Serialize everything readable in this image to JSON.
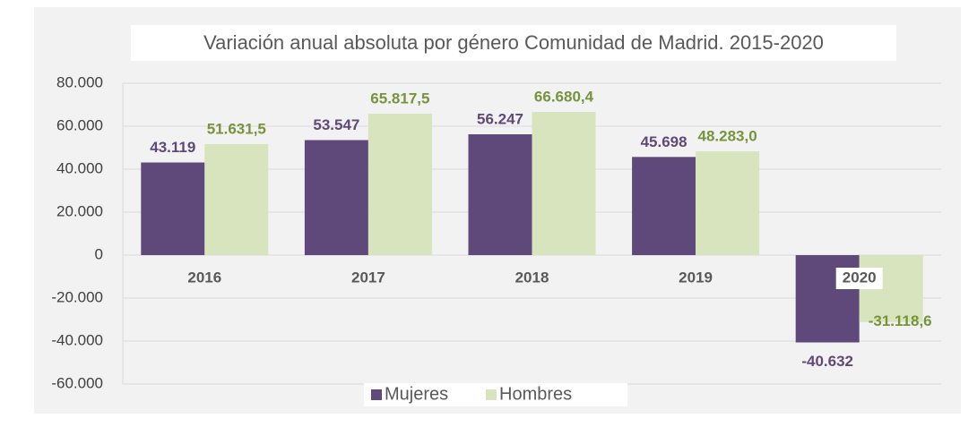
{
  "chart_data": {
    "type": "bar",
    "title": "Variación anual absoluta por género Comunidad de Madrid. 2015-2020",
    "categories": [
      "2016",
      "2017",
      "2018",
      "2019",
      "2020"
    ],
    "series": [
      {
        "name": "Mujeres",
        "color": "#5f497a",
        "label_color": "#5f497a",
        "values": [
          43119,
          53547,
          56247,
          45698,
          -40632
        ],
        "value_labels": [
          "43.119",
          "53.547",
          "56.247",
          "45.698",
          "-40.632"
        ]
      },
      {
        "name": "Hombres",
        "color": "#d7e4bd",
        "label_color": "#77933c",
        "values": [
          51631.5,
          65817.5,
          66680.4,
          48283.0,
          -31118.6
        ],
        "value_labels": [
          "51.631,5",
          "65.817,5",
          "66.680,4",
          "48.283,0",
          "-31.118,6"
        ]
      }
    ],
    "ylim": [
      -60000,
      80000
    ],
    "yticks": [
      {
        "value": -60000,
        "label": "-60.000"
      },
      {
        "value": -40000,
        "label": "-40.000"
      },
      {
        "value": -20000,
        "label": "-20.000"
      },
      0,
      {
        "value": 20000,
        "label": "20.000"
      },
      {
        "value": 40000,
        "label": "40.000"
      },
      {
        "value": 60000,
        "label": "60.000"
      },
      {
        "value": 80000,
        "label": "80.000"
      }
    ],
    "grid": true,
    "legend": "bottom"
  }
}
